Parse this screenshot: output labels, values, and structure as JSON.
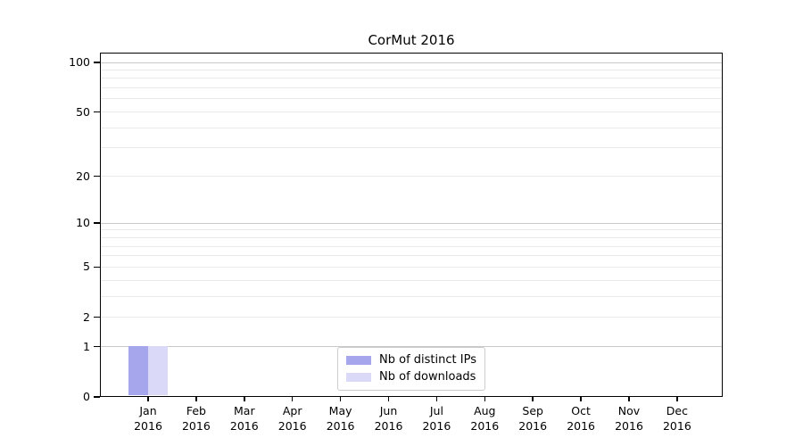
{
  "title": "CorMut 2016",
  "colors": {
    "bar_distinct_ips": "#a6a6ec",
    "bar_downloads": "#dadaf8",
    "major_grid": "#c8c8c8",
    "minor_grid": "#eaeaea",
    "axis": "#000000",
    "legend_border": "#cccccc",
    "background": "#ffffff"
  },
  "chart_data": {
    "type": "bar",
    "title": "CorMut 2016",
    "categories": [
      "Jan 2016",
      "Feb 2016",
      "Mar 2016",
      "Apr 2016",
      "May 2016",
      "Jun 2016",
      "Jul 2016",
      "Aug 2016",
      "Sep 2016",
      "Oct 2016",
      "Nov 2016",
      "Dec 2016"
    ],
    "series": [
      {
        "name": "Nb of distinct IPs",
        "color": "#a6a6ec",
        "values": [
          1,
          0,
          0,
          0,
          0,
          0,
          0,
          0,
          0,
          0,
          0,
          0
        ]
      },
      {
        "name": "Nb of downloads",
        "color": "#dadaf8",
        "values": [
          1,
          0,
          0,
          0,
          0,
          0,
          0,
          0,
          0,
          0,
          0,
          0
        ]
      }
    ],
    "x_axis": {
      "month_labels": [
        "Jan",
        "Feb",
        "Mar",
        "Apr",
        "May",
        "Jun",
        "Jul",
        "Aug",
        "Sep",
        "Oct",
        "Nov",
        "Dec"
      ],
      "year_label": "2016"
    },
    "y_axis": {
      "scale": "log1p",
      "range": [
        0,
        100
      ],
      "tick_values": [
        0,
        1,
        2,
        5,
        10,
        20,
        50,
        100
      ],
      "tick_labels": [
        "0",
        "1",
        "2",
        "5",
        "10",
        "20",
        "50",
        "100"
      ],
      "major_gridlines": [
        1,
        10,
        100
      ],
      "minor_gridlines": [
        2,
        3,
        4,
        5,
        6,
        7,
        8,
        9,
        20,
        30,
        40,
        50,
        60,
        70,
        80,
        90
      ]
    },
    "grid": true,
    "legend_position": "lower center inside",
    "xlabel": "",
    "ylabel": ""
  }
}
